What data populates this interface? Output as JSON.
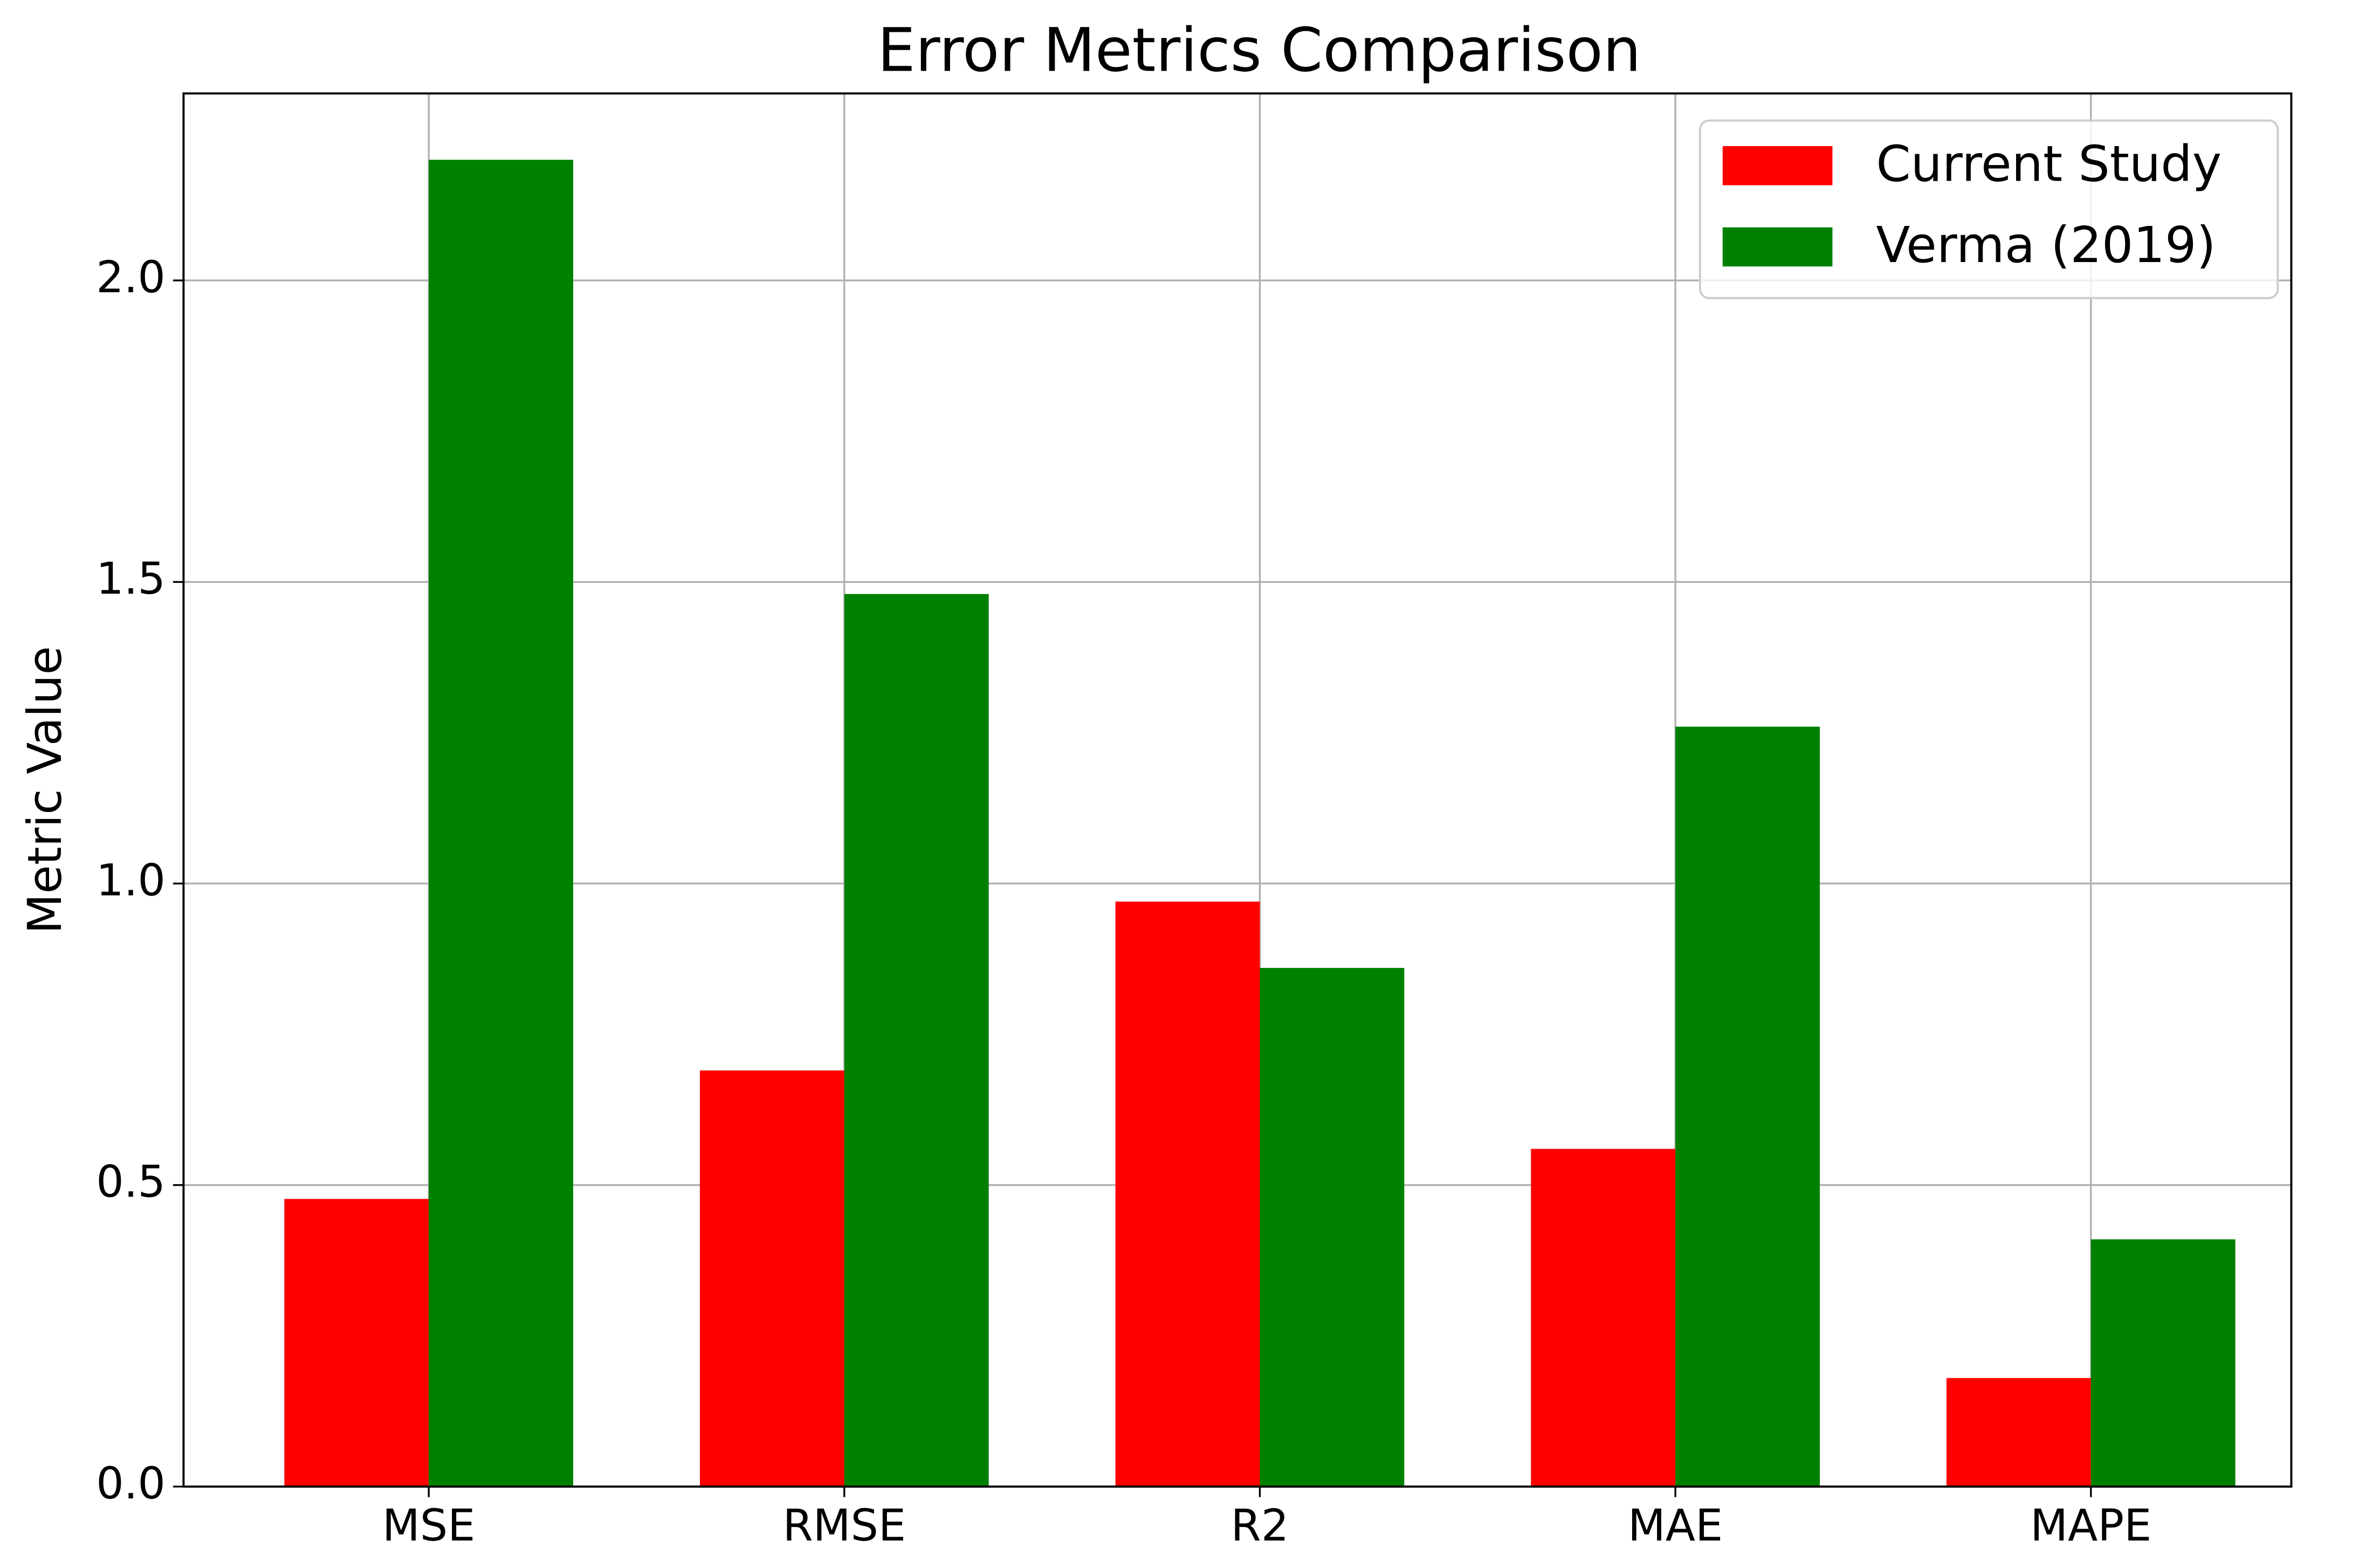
{
  "chart_data": {
    "type": "bar",
    "title": "Error Metrics Comparison",
    "y_label": "Metric Value",
    "categories": [
      "MSE",
      "RMSE",
      "R2",
      "MAE",
      "MAPE"
    ],
    "series": [
      {
        "name": "Current Study",
        "color": "#ff0000",
        "values": [
          0.477,
          0.69,
          0.97,
          0.56,
          0.18
        ]
      },
      {
        "name": "Verma (2019)",
        "color": "#008000",
        "values": [
          2.2,
          1.48,
          0.86,
          1.26,
          0.41
        ]
      }
    ],
    "ylim": [
      0,
      2.31
    ],
    "yticks": [
      {
        "value": 0,
        "label": "0.0"
      },
      {
        "value": 0.5,
        "label": "0.5"
      },
      {
        "value": 1,
        "label": "1.0"
      },
      {
        "value": 1.5,
        "label": "1.5"
      },
      {
        "value": 2,
        "label": "2.0"
      }
    ],
    "grid": true,
    "legend": "upper right"
  }
}
